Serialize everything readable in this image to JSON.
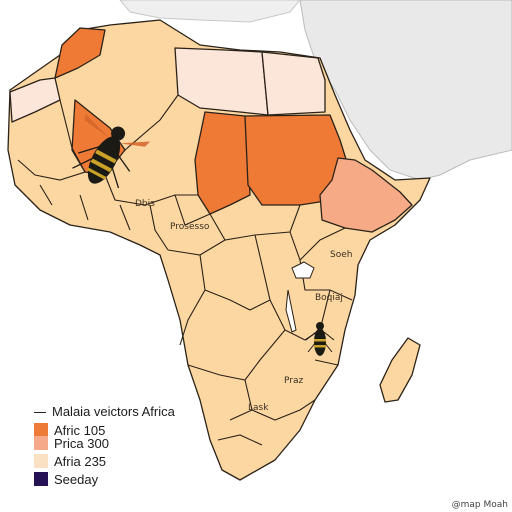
{
  "legend": {
    "title": "Malaia veictors Africa",
    "items": [
      {
        "label": "Afric 105",
        "color": "#ed7a36"
      },
      {
        "label": "Prica 300",
        "color": "#f5a988"
      },
      {
        "label": "Afria 235",
        "color": "#fbe1c4"
      },
      {
        "label": "Seeday",
        "color": "#241254"
      }
    ]
  },
  "labels": {
    "west": "Dbis",
    "central": "Prosesso",
    "east_upper": "Soeh",
    "east_mid": "Boqiaj",
    "south_a": "Praz",
    "south_b": "Lask"
  },
  "colors": {
    "background": "#ffffff",
    "base_land": "#fcd7a2",
    "highlight_high": "#ef7a36",
    "highlight_mid": "#f6aa85",
    "highlight_low": "#fbe6d9",
    "neighbor_land": "#e9e9e9",
    "mosquito": "#1c1a14"
  },
  "credit": "@map Moah"
}
